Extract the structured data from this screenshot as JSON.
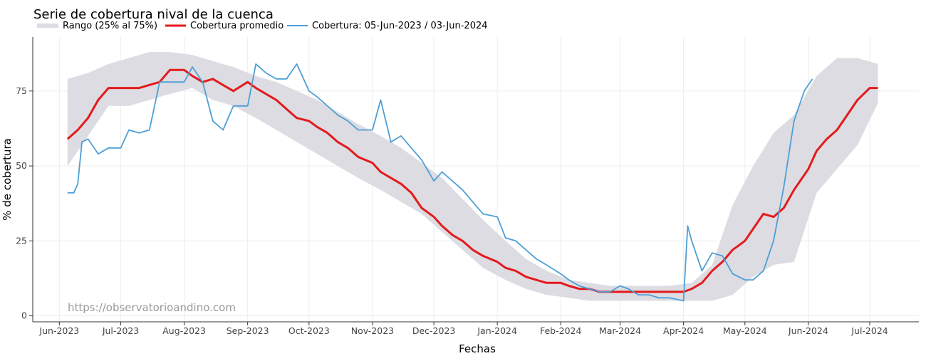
{
  "chart_data": {
    "type": "line",
    "title": "Serie de cobertura nival de la cuenca",
    "xlabel": "Fechas",
    "ylabel": "% de cobertura",
    "ylim": [
      -2,
      93
    ],
    "yticks": [
      0,
      25,
      50,
      75
    ],
    "xlim": [
      "2023-05-19",
      "2024-07-25"
    ],
    "xticks": [
      {
        "date": "2023-06-01",
        "label": "Jun-2023"
      },
      {
        "date": "2023-07-01",
        "label": "Jul-2023"
      },
      {
        "date": "2023-08-01",
        "label": "Aug-2023"
      },
      {
        "date": "2023-09-01",
        "label": "Sep-2023"
      },
      {
        "date": "2023-10-01",
        "label": "Oct-2023"
      },
      {
        "date": "2023-11-01",
        "label": "Nov-2023"
      },
      {
        "date": "2023-12-01",
        "label": "Dec-2023"
      },
      {
        "date": "2024-01-01",
        "label": "Jan-2024"
      },
      {
        "date": "2024-02-01",
        "label": "Feb-2024"
      },
      {
        "date": "2024-03-01",
        "label": "Mar-2024"
      },
      {
        "date": "2024-04-01",
        "label": "Apr-2024"
      },
      {
        "date": "2024-05-01",
        "label": "May-2024"
      },
      {
        "date": "2024-06-01",
        "label": "Jun-2024"
      },
      {
        "date": "2024-07-01",
        "label": "Jul-2024"
      }
    ],
    "grid": true,
    "legend_position": "top-left",
    "watermark": "https://observatorioandino.com",
    "series": [
      {
        "name": "Rango (25% al 75%)",
        "kind": "band",
        "color": "#dcdce2",
        "x": [
          "2023-06-05",
          "2023-06-15",
          "2023-06-25",
          "2023-07-05",
          "2023-07-15",
          "2023-07-25",
          "2023-08-05",
          "2023-08-15",
          "2023-08-25",
          "2023-09-05",
          "2023-09-15",
          "2023-09-25",
          "2023-10-05",
          "2023-10-15",
          "2023-10-25",
          "2023-11-05",
          "2023-11-15",
          "2023-11-25",
          "2023-12-05",
          "2023-12-15",
          "2023-12-25",
          "2024-01-05",
          "2024-01-15",
          "2024-01-25",
          "2024-02-05",
          "2024-02-15",
          "2024-02-25",
          "2024-03-05",
          "2024-03-15",
          "2024-03-25",
          "2024-04-05",
          "2024-04-15",
          "2024-04-25",
          "2024-05-05",
          "2024-05-15",
          "2024-05-25",
          "2024-06-05",
          "2024-06-15",
          "2024-06-25",
          "2024-07-05"
        ],
        "lower": [
          50,
          60,
          70,
          70,
          72,
          74,
          76,
          72,
          70,
          66,
          62,
          58,
          54,
          50,
          46,
          42,
          38,
          34,
          28,
          22,
          16,
          12,
          9,
          7,
          6,
          5,
          5,
          5,
          5,
          5,
          5,
          5,
          7,
          13,
          17,
          18,
          41,
          49,
          57,
          71
        ],
        "upper": [
          79,
          81,
          84,
          86,
          88,
          88,
          87,
          85,
          83,
          80,
          78,
          75,
          72,
          68,
          64,
          60,
          56,
          51,
          46,
          39,
          32,
          25,
          19,
          15,
          12,
          11,
          10,
          10,
          10,
          10,
          11,
          17,
          37,
          50,
          61,
          67,
          80,
          86,
          86,
          84
        ]
      },
      {
        "name": "Cobertura promedio",
        "kind": "line",
        "color": "#e41a1c",
        "x": [
          "2023-06-05",
          "2023-06-10",
          "2023-06-15",
          "2023-06-20",
          "2023-06-25",
          "2023-07-01",
          "2023-07-10",
          "2023-07-20",
          "2023-07-25",
          "2023-08-01",
          "2023-08-05",
          "2023-08-10",
          "2023-08-15",
          "2023-08-20",
          "2023-08-25",
          "2023-09-01",
          "2023-09-05",
          "2023-09-10",
          "2023-09-15",
          "2023-09-20",
          "2023-09-25",
          "2023-10-01",
          "2023-10-05",
          "2023-10-10",
          "2023-10-15",
          "2023-10-20",
          "2023-10-25",
          "2023-11-01",
          "2023-11-05",
          "2023-11-10",
          "2023-11-15",
          "2023-11-20",
          "2023-11-25",
          "2023-12-01",
          "2023-12-05",
          "2023-12-10",
          "2023-12-15",
          "2023-12-20",
          "2023-12-25",
          "2024-01-01",
          "2024-01-05",
          "2024-01-10",
          "2024-01-15",
          "2024-01-20",
          "2024-01-25",
          "2024-02-01",
          "2024-02-05",
          "2024-02-10",
          "2024-02-15",
          "2024-02-20",
          "2024-02-25",
          "2024-03-01",
          "2024-03-05",
          "2024-03-10",
          "2024-03-15",
          "2024-03-20",
          "2024-03-25",
          "2024-04-01",
          "2024-04-05",
          "2024-04-10",
          "2024-04-15",
          "2024-04-20",
          "2024-04-25",
          "2024-05-01",
          "2024-05-05",
          "2024-05-10",
          "2024-05-15",
          "2024-05-20",
          "2024-05-25",
          "2024-06-01",
          "2024-06-05",
          "2024-06-10",
          "2024-06-15",
          "2024-06-20",
          "2024-06-25",
          "2024-07-01",
          "2024-07-05"
        ],
        "values": [
          59,
          62,
          66,
          72,
          76,
          76,
          76,
          78,
          82,
          82,
          80,
          78,
          79,
          77,
          75,
          78,
          76,
          74,
          72,
          69,
          66,
          65,
          63,
          61,
          58,
          56,
          53,
          51,
          48,
          46,
          44,
          41,
          36,
          33,
          30,
          27,
          25,
          22,
          20,
          18,
          16,
          15,
          13,
          12,
          11,
          11,
          10,
          9,
          9,
          8,
          8,
          8,
          8,
          8,
          8,
          8,
          8,
          8,
          9,
          11,
          15,
          18,
          22,
          25,
          29,
          34,
          33,
          36,
          42,
          49,
          55,
          59,
          62,
          67,
          72,
          76,
          76
        ]
      },
      {
        "name": "Cobertura: 05-Jun-2023 / 03-Jun-2024",
        "kind": "line",
        "color": "#4d9fd6",
        "x": [
          "2023-06-05",
          "2023-06-08",
          "2023-06-10",
          "2023-06-12",
          "2023-06-15",
          "2023-06-20",
          "2023-06-25",
          "2023-07-01",
          "2023-07-05",
          "2023-07-10",
          "2023-07-15",
          "2023-07-20",
          "2023-07-25",
          "2023-07-30",
          "2023-08-01",
          "2023-08-05",
          "2023-08-10",
          "2023-08-15",
          "2023-08-20",
          "2023-08-25",
          "2023-08-30",
          "2023-09-01",
          "2023-09-05",
          "2023-09-10",
          "2023-09-15",
          "2023-09-20",
          "2023-09-25",
          "2023-10-01",
          "2023-10-05",
          "2023-10-10",
          "2023-10-15",
          "2023-10-20",
          "2023-10-25",
          "2023-11-01",
          "2023-11-05",
          "2023-11-10",
          "2023-11-15",
          "2023-11-20",
          "2023-11-25",
          "2023-12-01",
          "2023-12-05",
          "2023-12-10",
          "2023-12-15",
          "2023-12-20",
          "2023-12-25",
          "2024-01-01",
          "2024-01-05",
          "2024-01-10",
          "2024-01-15",
          "2024-01-20",
          "2024-01-25",
          "2024-02-01",
          "2024-02-05",
          "2024-02-10",
          "2024-02-15",
          "2024-02-20",
          "2024-02-25",
          "2024-03-01",
          "2024-03-05",
          "2024-03-10",
          "2024-03-15",
          "2024-03-20",
          "2024-03-25",
          "2024-04-01",
          "2024-04-03",
          "2024-04-05",
          "2024-04-10",
          "2024-04-15",
          "2024-04-20",
          "2024-04-25",
          "2024-05-01",
          "2024-05-05",
          "2024-05-10",
          "2024-05-15",
          "2024-05-20",
          "2024-05-25",
          "2024-05-30",
          "2024-06-03"
        ],
        "values": [
          41,
          41,
          44,
          58,
          59,
          54,
          56,
          56,
          62,
          61,
          62,
          78,
          78,
          78,
          78,
          83,
          78,
          65,
          62,
          70,
          70,
          70,
          84,
          81,
          79,
          79,
          84,
          75,
          73,
          70,
          67,
          65,
          62,
          62,
          72,
          58,
          60,
          56,
          52,
          45,
          48,
          45,
          42,
          38,
          34,
          33,
          26,
          25,
          22,
          19,
          17,
          14,
          12,
          10,
          9,
          8,
          8,
          10,
          9,
          7,
          7,
          6,
          6,
          5,
          30,
          25,
          15,
          21,
          20,
          14,
          12,
          12,
          15,
          25,
          43,
          65,
          75,
          79
        ]
      }
    ]
  }
}
